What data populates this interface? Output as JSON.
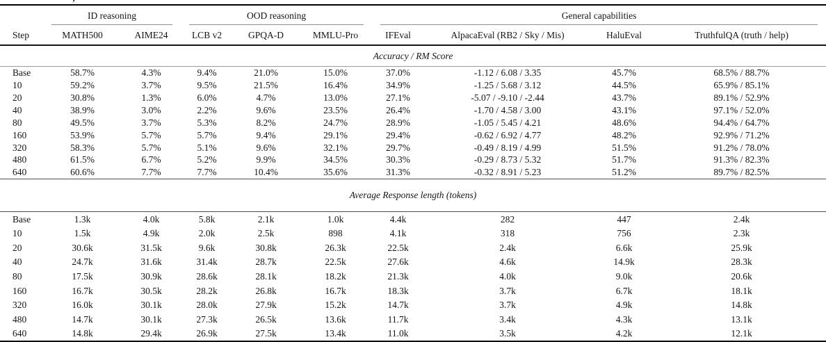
{
  "top_fragment": ",",
  "table": {
    "groups": [
      {
        "label": "ID reasoning",
        "span": 2
      },
      {
        "label": "OOD reasoning",
        "span": 3
      },
      {
        "label": "General capabilities",
        "span": 4
      }
    ],
    "columns": [
      "Step",
      "MATH500",
      "AIME24",
      "LCB v2",
      "GPQA-D",
      "MMLU-Pro",
      "IFEval",
      "AlpacaEval (RB2 / Sky / Mis)",
      "HaluEval",
      "TruthfulQA (truth / help)"
    ],
    "sections": [
      {
        "title": "Accuracy / RM Score",
        "rows": [
          [
            "Base",
            "58.7%",
            "4.3%",
            "9.4%",
            "21.0%",
            "15.0%",
            "37.0%",
            "-1.12 / 6.08 / 3.35",
            "45.7%",
            "68.5% / 88.7%"
          ],
          [
            "10",
            "59.2%",
            "3.7%",
            "9.5%",
            "21.5%",
            "16.4%",
            "34.9%",
            "-1.25 / 5.68 / 3.12",
            "44.5%",
            "65.9% / 85.1%"
          ],
          [
            "20",
            "30.8%",
            "1.3%",
            "6.0%",
            "4.7%",
            "13.0%",
            "27.1%",
            "-5.07 / -9.10 / -2.44",
            "43.7%",
            "89.1% / 52.9%"
          ],
          [
            "40",
            "38.9%",
            "3.0%",
            "2.2%",
            "9.6%",
            "23.5%",
            "26.4%",
            "-1.70 / 4.58 / 3.00",
            "43.1%",
            "97.1% / 52.0%"
          ],
          [
            "80",
            "49.5%",
            "3.7%",
            "5.3%",
            "8.2%",
            "24.7%",
            "28.9%",
            "-1.05 / 5.45 / 4.21",
            "48.6%",
            "94.4% / 64.7%"
          ],
          [
            "160",
            "53.9%",
            "5.7%",
            "5.7%",
            "9.4%",
            "29.1%",
            "29.4%",
            "-0.62 / 6.92 / 4.77",
            "48.2%",
            "92.9% / 71.2%"
          ],
          [
            "320",
            "58.3%",
            "5.7%",
            "5.1%",
            "9.6%",
            "32.1%",
            "29.7%",
            "-0.49 / 8.19 / 4.99",
            "51.5%",
            "91.2% / 78.0%"
          ],
          [
            "480",
            "61.5%",
            "6.7%",
            "5.2%",
            "9.9%",
            "34.5%",
            "30.3%",
            "-0.29 / 8.73 / 5.32",
            "51.7%",
            "91.3% / 82.3%"
          ],
          [
            "640",
            "60.6%",
            "7.7%",
            "7.7%",
            "10.4%",
            "35.6%",
            "31.3%",
            "-0.32 / 8.91 / 5.23",
            "51.2%",
            "89.7% / 82.5%"
          ]
        ]
      },
      {
        "title": "Average Response length (tokens)",
        "rows": [
          [
            "Base",
            "1.3k",
            "4.0k",
            "5.8k",
            "2.1k",
            "1.0k",
            "4.4k",
            "282",
            "447",
            "2.4k"
          ],
          [
            "10",
            "1.5k",
            "4.9k",
            "2.0k",
            "2.5k",
            "898",
            "4.1k",
            "318",
            "756",
            "2.3k"
          ],
          [
            "20",
            "30.6k",
            "31.5k",
            "9.6k",
            "30.8k",
            "26.3k",
            "22.5k",
            "2.4k",
            "6.6k",
            "25.9k"
          ],
          [
            "40",
            "24.7k",
            "31.6k",
            "31.4k",
            "28.7k",
            "22.5k",
            "27.6k",
            "4.6k",
            "14.9k",
            "28.3k"
          ],
          [
            "80",
            "17.5k",
            "30.9k",
            "28.6k",
            "28.1k",
            "18.2k",
            "21.3k",
            "4.0k",
            "9.0k",
            "20.6k"
          ],
          [
            "160",
            "16.7k",
            "30.5k",
            "28.2k",
            "26.8k",
            "16.7k",
            "18.3k",
            "3.7k",
            "6.7k",
            "18.1k"
          ],
          [
            "320",
            "16.0k",
            "30.1k",
            "28.0k",
            "27.9k",
            "15.2k",
            "14.7k",
            "3.7k",
            "4.9k",
            "14.8k"
          ],
          [
            "480",
            "14.7k",
            "30.1k",
            "27.3k",
            "26.5k",
            "13.6k",
            "11.7k",
            "3.4k",
            "4.3k",
            "13.1k"
          ],
          [
            "640",
            "14.8k",
            "29.4k",
            "26.9k",
            "27.5k",
            "13.4k",
            "11.0k",
            "3.5k",
            "4.2k",
            "12.1k"
          ]
        ]
      }
    ]
  }
}
